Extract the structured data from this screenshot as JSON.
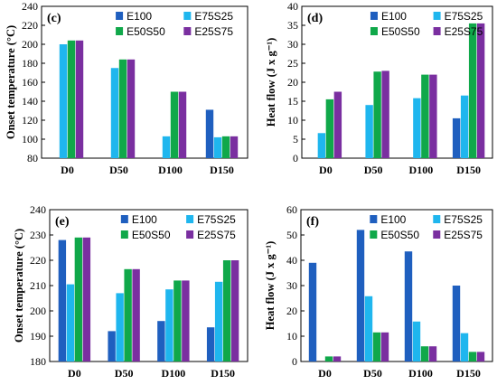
{
  "colors": {
    "E100": "#1f5fbf",
    "E75S25": "#1fb6ee",
    "E50S50": "#10a84a",
    "E25S75": "#7a2fa0"
  },
  "chart_data": [
    {
      "type": "bar",
      "panel": "(c)",
      "ylabel": "Onset temperature (°C)",
      "ylim": [
        80,
        240
      ],
      "yticks": [
        80,
        100,
        120,
        140,
        160,
        180,
        200,
        220,
        240
      ],
      "categories": [
        "D0",
        "D50",
        "D100",
        "D150"
      ],
      "legend": {
        "placement": "top-right",
        "columns": 2
      },
      "series": [
        {
          "name": "E100",
          "values": [
            null,
            null,
            null,
            131
          ]
        },
        {
          "name": "E75S25",
          "values": [
            200,
            175,
            103,
            102
          ]
        },
        {
          "name": "E50S50",
          "values": [
            204,
            184,
            150,
            103
          ]
        },
        {
          "name": "E25S75",
          "values": [
            204,
            184,
            150,
            103
          ]
        }
      ]
    },
    {
      "type": "bar",
      "panel": "(d)",
      "ylabel": "Heat flow (J x g⁻¹)",
      "ylim": [
        0,
        40
      ],
      "yticks": [
        0,
        5,
        10,
        15,
        20,
        25,
        30,
        35,
        40
      ],
      "categories": [
        "D0",
        "D50",
        "D100",
        "D150"
      ],
      "legend": {
        "placement": "top-right",
        "columns": 2
      },
      "series": [
        {
          "name": "E100",
          "values": [
            null,
            null,
            null,
            10.5
          ]
        },
        {
          "name": "E75S25",
          "values": [
            6.6,
            14,
            15.8,
            16.5
          ]
        },
        {
          "name": "E50S50",
          "values": [
            15.5,
            22.8,
            22,
            35.5
          ]
        },
        {
          "name": "E25S75",
          "values": [
            17.5,
            23,
            22,
            35.5
          ]
        }
      ]
    },
    {
      "type": "bar",
      "panel": "(e)",
      "ylabel": "Onset temperature (°C)",
      "ylim": [
        180,
        240
      ],
      "yticks": [
        180,
        190,
        200,
        210,
        220,
        230,
        240
      ],
      "categories": [
        "D0",
        "D50",
        "D100",
        "D150"
      ],
      "legend": {
        "placement": "top-right",
        "columns": 2
      },
      "series": [
        {
          "name": "E100",
          "values": [
            228,
            192,
            196,
            193.5
          ]
        },
        {
          "name": "E75S25",
          "values": [
            210.5,
            207,
            208.5,
            211.5
          ]
        },
        {
          "name": "E50S50",
          "values": [
            229,
            216.5,
            212,
            220
          ]
        },
        {
          "name": "E25S75",
          "values": [
            229,
            216.5,
            212,
            220
          ]
        }
      ]
    },
    {
      "type": "bar",
      "panel": "(f)",
      "ylabel": "Heat flow (J x g⁻¹)",
      "ylim": [
        0,
        60
      ],
      "yticks": [
        0,
        10,
        20,
        30,
        40,
        50,
        60
      ],
      "categories": [
        "D0",
        "D50",
        "D100",
        "D150"
      ],
      "legend": {
        "placement": "top-right",
        "columns": 2
      },
      "series": [
        {
          "name": "E100",
          "values": [
            39,
            52,
            43.5,
            30
          ]
        },
        {
          "name": "E75S25",
          "values": [
            null,
            25.8,
            15.8,
            11.2
          ]
        },
        {
          "name": "E50S50",
          "values": [
            2,
            11.5,
            6,
            3.8
          ]
        },
        {
          "name": "E25S75",
          "values": [
            2,
            11.5,
            6,
            3.8
          ]
        }
      ]
    }
  ]
}
